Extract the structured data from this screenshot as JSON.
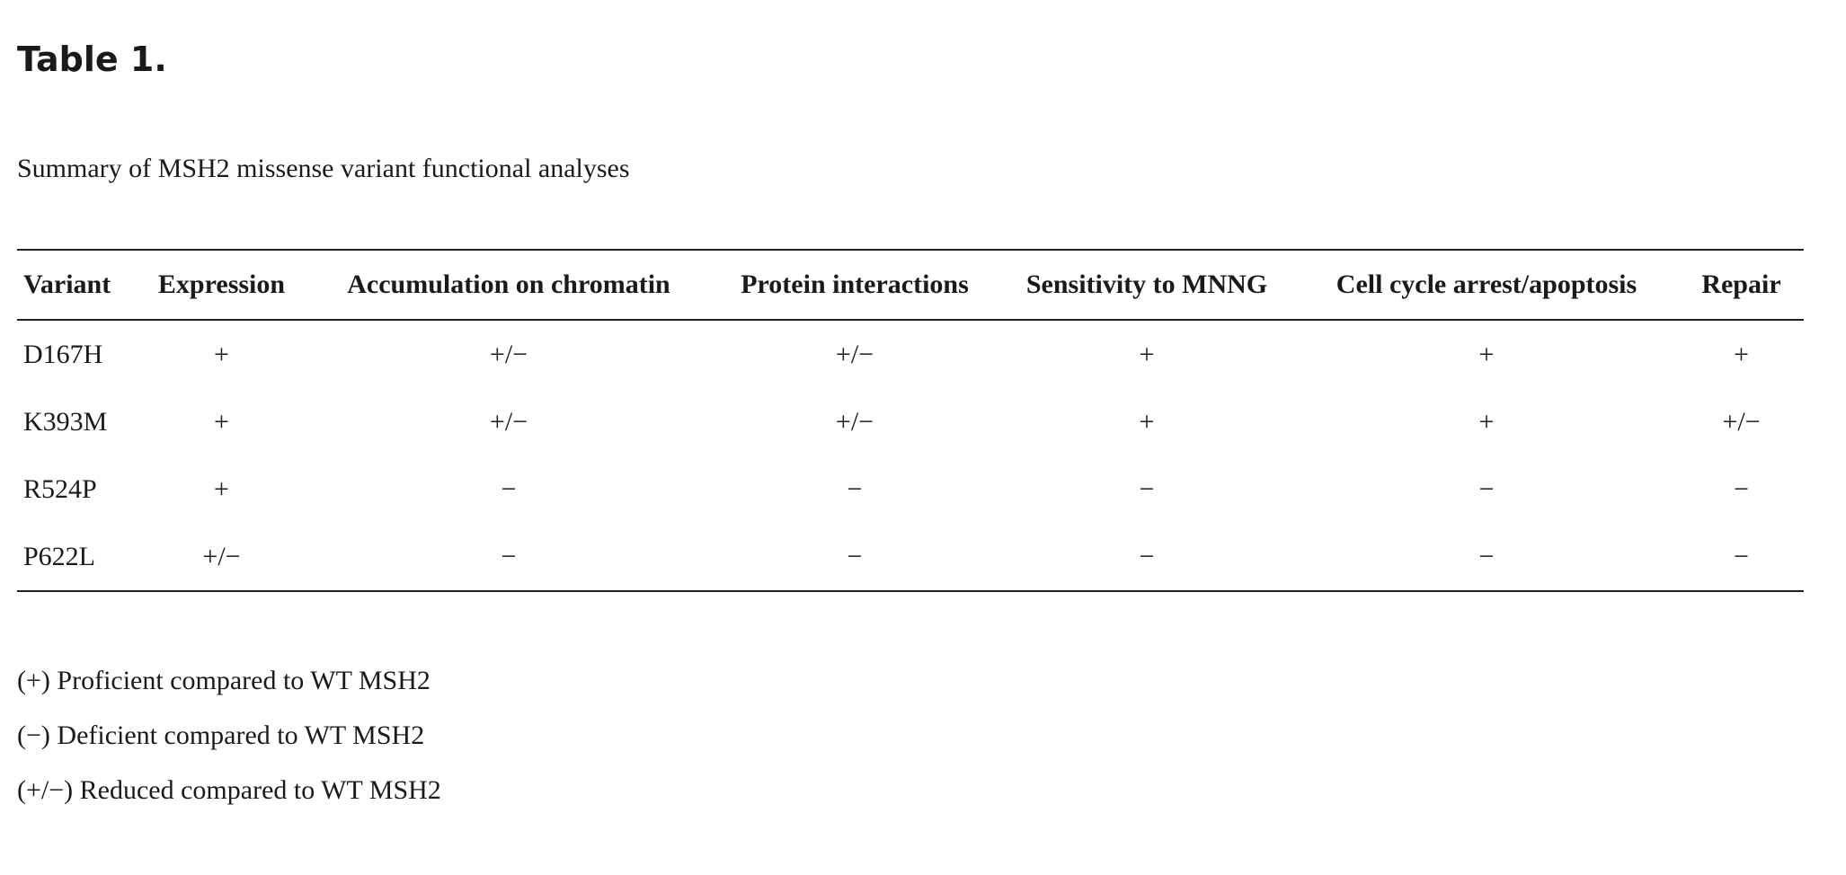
{
  "title": "Table 1.",
  "caption": "Summary of MSH2 missense variant functional analyses",
  "table": {
    "headers": [
      "Variant",
      "Expression",
      "Accumulation on chromatin",
      "Protein interactions",
      "Sensitivity to MNNG",
      "Cell cycle arrest/apoptosis",
      "Repair"
    ],
    "rows": [
      [
        "D167H",
        "+",
        "+/−",
        "+/−",
        "+",
        "+",
        "+"
      ],
      [
        "K393M",
        "+",
        "+/−",
        "+/−",
        "+",
        "+",
        "+/−"
      ],
      [
        "R524P",
        "+",
        "−",
        "−",
        "−",
        "−",
        "−"
      ],
      [
        "P622L",
        "+/−",
        "−",
        "−",
        "−",
        "−",
        "−"
      ]
    ]
  },
  "footnotes": [
    "(+) Proficient compared to WT MSH2",
    "(−) Deficient compared to WT MSH2",
    "(+/−) Reduced compared to WT MSH2"
  ]
}
